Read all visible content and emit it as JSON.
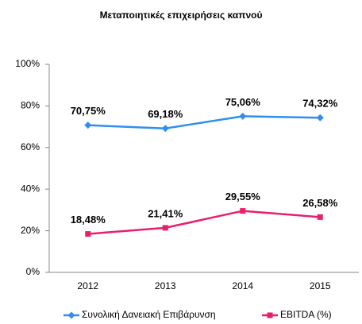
{
  "chart_data": {
    "type": "line",
    "title": "Μεταποιητικές επιχειρήσεις καπνού",
    "categories": [
      "2012",
      "2013",
      "2014",
      "2015"
    ],
    "series": [
      {
        "name": "Συνολική Δανειακή Επιβάρυνση",
        "color": "#2f8ff0",
        "marker": "diamond",
        "values": [
          70.75,
          69.18,
          75.06,
          74.32
        ],
        "value_labels": [
          "70,75%",
          "69,18%",
          "75,06%",
          "74,32%"
        ]
      },
      {
        "name": "EBITDA (%)",
        "color": "#ea1e6c",
        "marker": "square",
        "values": [
          18.48,
          21.41,
          29.55,
          26.58
        ],
        "value_labels": [
          "18,48%",
          "21,41%",
          "29,55%",
          "26,58%"
        ]
      }
    ],
    "ylim": [
      0,
      100
    ],
    "yticks": [
      {
        "value": 0,
        "label": "0%"
      },
      {
        "value": 20,
        "label": "20%"
      },
      {
        "value": 40,
        "label": "40%"
      },
      {
        "value": 60,
        "label": "60%"
      },
      {
        "value": 80,
        "label": "80%"
      },
      {
        "value": 100,
        "label": "100%"
      }
    ],
    "grid": false,
    "legend": "bottom"
  }
}
